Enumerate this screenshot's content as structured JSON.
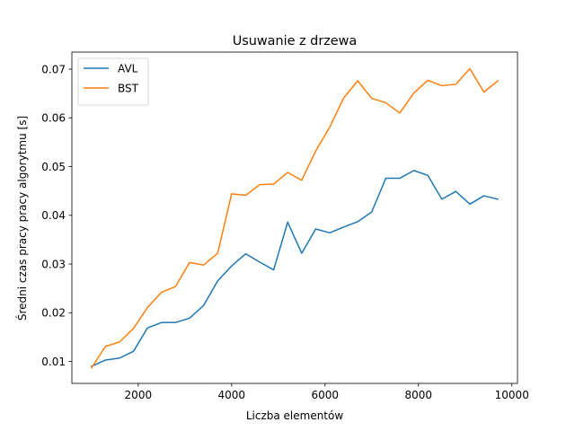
{
  "chart_data": {
    "type": "line",
    "title": "Usuwanie z drzewa",
    "xlabel": "Liczba elementów",
    "ylabel": "Średni czas pracy pracy algorytmu [s]",
    "xlim": [
      580,
      10120
    ],
    "ylim": [
      0.0055,
      0.0735
    ],
    "xticks": [
      2000,
      4000,
      6000,
      8000,
      10000
    ],
    "yticks": [
      0.01,
      0.02,
      0.03,
      0.04,
      0.05,
      0.06,
      0.07
    ],
    "xtick_labels": [
      "2000",
      "4000",
      "6000",
      "8000",
      "10000"
    ],
    "ytick_labels": [
      "0.01",
      "0.02",
      "0.03",
      "0.04",
      "0.05",
      "0.06",
      "0.07"
    ],
    "legend_position": "upper-left",
    "grid": false,
    "x": [
      1000,
      1300,
      1600,
      1900,
      2200,
      2500,
      2800,
      3100,
      3400,
      3700,
      4000,
      4300,
      4600,
      4900,
      5200,
      5500,
      5800,
      6100,
      6400,
      6700,
      7000,
      7300,
      7600,
      7900,
      8200,
      8500,
      8800,
      9100,
      9400,
      9700
    ],
    "series": [
      {
        "name": "AVL",
        "color": "#1f77b4",
        "values": [
          0.009,
          0.0103,
          0.0107,
          0.0121,
          0.0169,
          0.018,
          0.018,
          0.0189,
          0.0215,
          0.0265,
          0.0296,
          0.0321,
          0.0304,
          0.0288,
          0.0386,
          0.0322,
          0.0372,
          0.0364,
          0.0376,
          0.0387,
          0.0407,
          0.0476,
          0.0476,
          0.0492,
          0.0482,
          0.0433,
          0.0449,
          0.0423,
          0.044,
          0.0433
        ]
      },
      {
        "name": "BST",
        "color": "#ff7f0e",
        "values": [
          0.0087,
          0.0131,
          0.014,
          0.0168,
          0.0211,
          0.0242,
          0.0254,
          0.0303,
          0.0298,
          0.0322,
          0.0444,
          0.0441,
          0.0463,
          0.0464,
          0.0488,
          0.0472,
          0.0532,
          0.0581,
          0.0641,
          0.0676,
          0.064,
          0.0631,
          0.061,
          0.0651,
          0.0677,
          0.0666,
          0.0669,
          0.0701,
          0.0653,
          0.0676
        ]
      }
    ]
  }
}
